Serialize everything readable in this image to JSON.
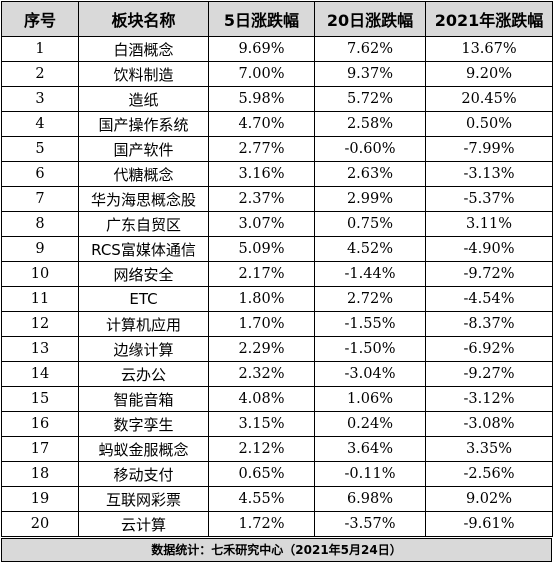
{
  "table": {
    "headers": [
      "序号",
      "板块名称",
      "5日涨跌幅",
      "20日涨跌幅",
      "2021年涨跌幅"
    ],
    "rows": [
      [
        "1",
        "白酒概念",
        "9.69%",
        "7.62%",
        "13.67%"
      ],
      [
        "2",
        "饮料制造",
        "7.00%",
        "9.37%",
        "9.20%"
      ],
      [
        "3",
        "造纸",
        "5.98%",
        "5.72%",
        "20.45%"
      ],
      [
        "4",
        "国产操作系统",
        "4.70%",
        "2.58%",
        "0.50%"
      ],
      [
        "5",
        "国产软件",
        "2.77%",
        "-0.60%",
        "-7.99%"
      ],
      [
        "6",
        "代糖概念",
        "3.16%",
        "2.63%",
        "-3.13%"
      ],
      [
        "7",
        "华为海思概念股",
        "2.37%",
        "2.99%",
        "-5.37%"
      ],
      [
        "8",
        "广东自贸区",
        "3.07%",
        "0.75%",
        "3.11%"
      ],
      [
        "9",
        "RCS富媒体通信",
        "5.09%",
        "4.52%",
        "-4.90%"
      ],
      [
        "10",
        "网络安全",
        "2.17%",
        "-1.44%",
        "-9.72%"
      ],
      [
        "11",
        "ETC",
        "1.80%",
        "2.72%",
        "-4.54%"
      ],
      [
        "12",
        "计算机应用",
        "1.70%",
        "-1.55%",
        "-8.37%"
      ],
      [
        "13",
        "边缘计算",
        "2.29%",
        "-1.50%",
        "-6.92%"
      ],
      [
        "14",
        "云办公",
        "2.32%",
        "-3.04%",
        "-9.27%"
      ],
      [
        "15",
        "智能音箱",
        "4.08%",
        "1.06%",
        "-3.12%"
      ],
      [
        "16",
        "数字孪生",
        "3.15%",
        "0.24%",
        "-3.08%"
      ],
      [
        "17",
        "蚂蚁金服概念",
        "2.12%",
        "3.64%",
        "3.35%"
      ],
      [
        "18",
        "移动支付",
        "0.65%",
        "-0.11%",
        "-2.56%"
      ],
      [
        "19",
        "互联网彩票",
        "4.55%",
        "6.98%",
        "9.02%"
      ],
      [
        "20",
        "云计算",
        "1.72%",
        "-3.57%",
        "-9.61%"
      ]
    ]
  },
  "footer": {
    "text": "数据统计：七禾研究中心（2021年5月24日）"
  }
}
